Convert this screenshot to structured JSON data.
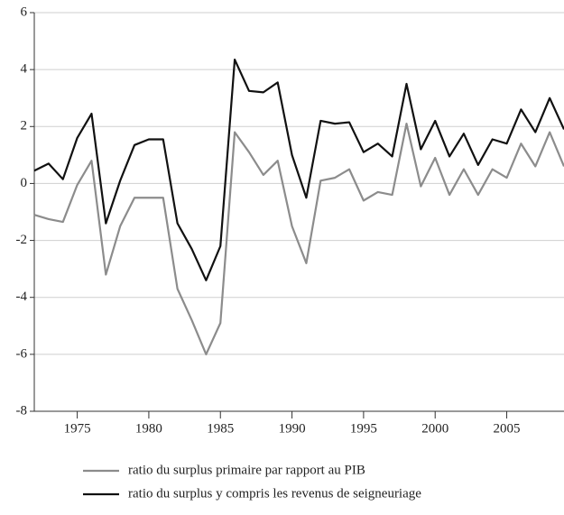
{
  "chart_data": {
    "type": "line",
    "x": [
      1972,
      1973,
      1974,
      1975,
      1976,
      1977,
      1978,
      1979,
      1980,
      1981,
      1982,
      1983,
      1984,
      1985,
      1986,
      1987,
      1988,
      1989,
      1990,
      1991,
      1992,
      1993,
      1994,
      1995,
      1996,
      1997,
      1998,
      1999,
      2000,
      2001,
      2002,
      2003,
      2004,
      2005,
      2006,
      2007,
      2008,
      2009
    ],
    "series": [
      {
        "name": "ratio du surplus primaire par rapport au PIB",
        "color": "#8c8c8c",
        "values": [
          -1.1,
          -1.25,
          -1.35,
          -0.05,
          0.8,
          -3.2,
          -1.5,
          -0.5,
          -0.5,
          -0.5,
          -3.7,
          -4.8,
          -6.0,
          -4.9,
          1.8,
          1.1,
          0.3,
          0.8,
          -1.5,
          -2.8,
          0.1,
          0.2,
          0.5,
          -0.6,
          -0.3,
          -0.4,
          2.1,
          -0.1,
          0.9,
          -0.4,
          0.5,
          -0.4,
          0.5,
          0.2,
          1.4,
          0.6,
          1.8,
          0.6
        ]
      },
      {
        "name": "ratio du surplus y compris les revenus de seigneuriage",
        "color": "#111111",
        "values": [
          0.45,
          0.7,
          0.15,
          1.6,
          2.45,
          -1.4,
          0.1,
          1.35,
          1.55,
          1.55,
          -1.4,
          -2.3,
          -3.4,
          -2.2,
          4.35,
          3.25,
          3.2,
          3.55,
          1.0,
          -0.5,
          2.2,
          2.1,
          2.15,
          1.1,
          1.4,
          0.95,
          3.5,
          1.2,
          2.2,
          0.95,
          1.75,
          0.65,
          1.55,
          1.4,
          2.6,
          1.8,
          3.0,
          1.9
        ]
      }
    ],
    "xlim": [
      1972,
      2009
    ],
    "xticks": [
      1975,
      1980,
      1985,
      1990,
      1995,
      2000,
      2005
    ],
    "ylim": [
      -8,
      6
    ],
    "yticks": [
      -8,
      -6,
      -4,
      -2,
      0,
      2,
      4,
      6
    ],
    "grid": true,
    "legend": "bottom"
  }
}
